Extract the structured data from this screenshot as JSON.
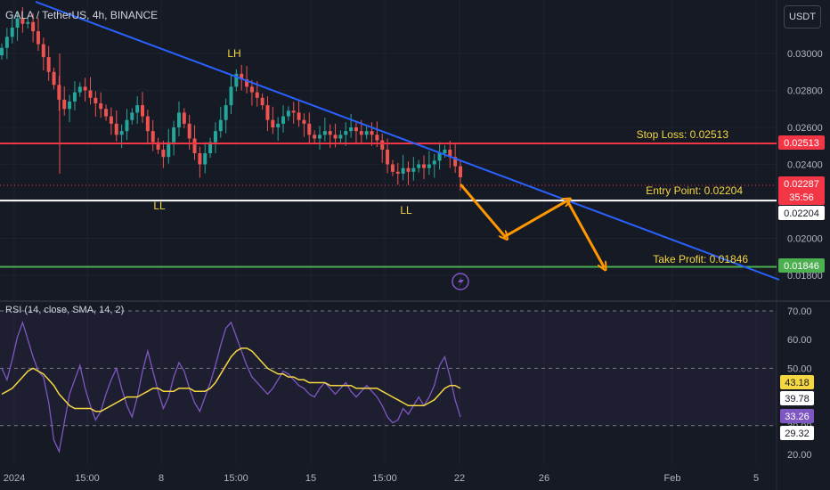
{
  "header": {
    "symbol_title": "GALA / TetherUS, 4h, BINANCE",
    "currency_button": "USDT"
  },
  "colors": {
    "background": "#161a25",
    "up": "#26a69a",
    "down": "#ef5350",
    "trend_line": "#2962ff",
    "stop_loss": "#f23645",
    "entry": "#ffffff",
    "take_profit": "#4caf50",
    "arrow": "#ff9800",
    "label_text": "#f5d742",
    "rsi_line": "#7e57c2",
    "rsi_ma": "#f5d742"
  },
  "annotations": {
    "lh": "LH",
    "ll_left": "LL",
    "ll_right": "LL",
    "stop_loss_label": "Stop Loss: 0.02513",
    "entry_label": "Entry Point: 0.02204",
    "take_profit_label": "Take Profit: 0.01846"
  },
  "price_tags": {
    "stop_loss": "0.02513",
    "current": "0.02287",
    "countdown": "35:56",
    "entry": "0.02204",
    "take_profit": "0.01846"
  },
  "rsi": {
    "title": "RSI (14, close, SMA, 14, 2)",
    "tags": {
      "ma": "43.18",
      "band_low": "39.78",
      "rsi": "33.26",
      "band_low2": "29.32"
    }
  },
  "chart_data": [
    {
      "type": "candlestick",
      "title": "GALA / TetherUS, 4h, BINANCE",
      "y_ticks": [
        "0.03000",
        "0.02800",
        "0.02600",
        "0.02400",
        "0.02200",
        "0.02000",
        "0.01800"
      ],
      "ylim": [
        0.0177,
        0.0325
      ],
      "x_ticks": [
        "2024",
        "15:00",
        "8",
        "15:00",
        "15",
        "15:00",
        "22",
        "26",
        "Feb",
        "5"
      ],
      "levels": {
        "stop_loss": 0.02513,
        "entry": 0.02204,
        "take_profit": 0.01846,
        "current": 0.02287
      },
      "close_path": [
        0.0303,
        0.0309,
        0.0314,
        0.0319,
        0.0316,
        0.0317,
        0.0312,
        0.0305,
        0.0298,
        0.029,
        0.0283,
        0.0275,
        0.027,
        0.0274,
        0.0279,
        0.0282,
        0.028,
        0.0276,
        0.0273,
        0.027,
        0.0266,
        0.0262,
        0.0256,
        0.0258,
        0.0264,
        0.0268,
        0.0272,
        0.0266,
        0.0258,
        0.0252,
        0.0248,
        0.0244,
        0.0252,
        0.026,
        0.0268,
        0.0262,
        0.0254,
        0.0246,
        0.024,
        0.0246,
        0.0252,
        0.0258,
        0.0264,
        0.0272,
        0.0282,
        0.0289,
        0.0286,
        0.0282,
        0.0279,
        0.0276,
        0.0272,
        0.0264,
        0.026,
        0.0262,
        0.0266,
        0.0269,
        0.0268,
        0.0264,
        0.0262,
        0.0256,
        0.0254,
        0.0256,
        0.0258,
        0.0256,
        0.0254,
        0.0256,
        0.0258,
        0.026,
        0.0258,
        0.0256,
        0.0258,
        0.0256,
        0.0253,
        0.0248,
        0.024,
        0.0236,
        0.0235,
        0.0238,
        0.0236,
        0.0238,
        0.024,
        0.0238,
        0.024,
        0.0242,
        0.0246,
        0.0248,
        0.0244,
        0.0239,
        0.0233
      ],
      "projection": [
        0.02287,
        0.0201,
        0.02204,
        0.01846
      ]
    },
    {
      "type": "line",
      "title": "RSI (14, close, SMA, 14, 2)",
      "y_ticks": [
        "70.00",
        "60.00",
        "50.00",
        "40.00",
        "30.00",
        "20.00"
      ],
      "ylim": [
        17,
        75
      ],
      "bands": [
        70,
        30
      ],
      "midline": 50,
      "series": [
        {
          "name": "RSI",
          "values": [
            50,
            46,
            53,
            61,
            66,
            60,
            54,
            49,
            47,
            38,
            25,
            21,
            31,
            41,
            46,
            51,
            43,
            37,
            32,
            35,
            41,
            46,
            50,
            43,
            37,
            33,
            40,
            49,
            56,
            49,
            42,
            36,
            40,
            47,
            52,
            49,
            43,
            38,
            35,
            40,
            45,
            51,
            58,
            64,
            66,
            61,
            56,
            51,
            47,
            45,
            43,
            41,
            43,
            46,
            49,
            48,
            46,
            44,
            43,
            41,
            40,
            43,
            45,
            43,
            41,
            43,
            45,
            42,
            40,
            42,
            44,
            42,
            40,
            37,
            33,
            31,
            32,
            36,
            34,
            37,
            40,
            37,
            40,
            44,
            51,
            54,
            47,
            39,
            33
          ]
        },
        {
          "name": "RSI-based MA",
          "values": [
            41,
            42,
            43,
            45,
            47,
            49,
            50,
            49,
            48,
            46,
            44,
            41,
            39,
            37,
            36,
            36,
            36,
            36,
            35,
            35,
            36,
            37,
            38,
            39,
            40,
            40,
            40,
            41,
            42,
            43,
            43,
            42,
            42,
            42,
            43,
            43,
            43,
            42,
            42,
            42,
            43,
            45,
            48,
            51,
            54,
            56,
            57,
            57,
            56,
            54,
            52,
            50,
            49,
            48,
            48,
            47,
            47,
            46,
            46,
            45,
            45,
            45,
            45,
            44,
            44,
            44,
            44,
            44,
            43,
            43,
            43,
            43,
            43,
            42,
            41,
            40,
            39,
            38,
            37,
            37,
            37,
            37,
            38,
            39,
            41,
            43,
            44,
            44,
            43
          ]
        }
      ]
    }
  ]
}
